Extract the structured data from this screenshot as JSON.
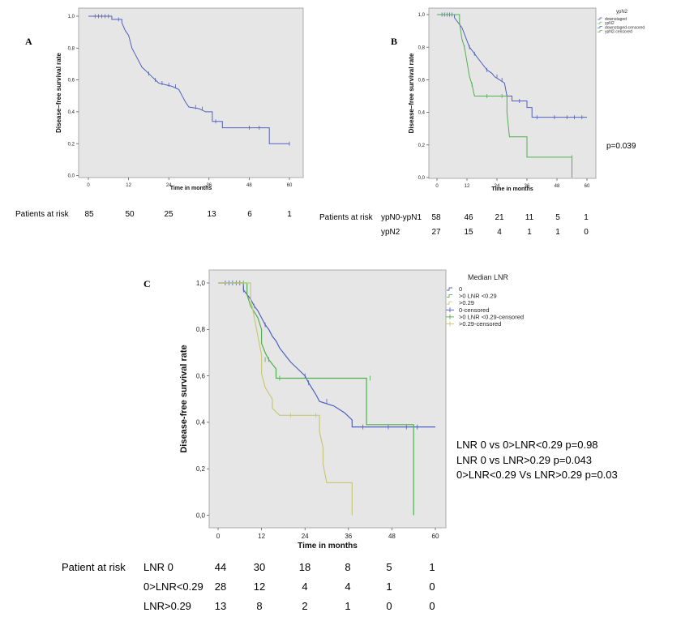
{
  "labels": {
    "a": "A",
    "b": "B",
    "c": "C"
  },
  "chart_data": [
    {
      "id": "A",
      "type": "line",
      "subtype": "kaplan-meier",
      "title": "",
      "xlabel": "Time in months",
      "ylabel": "Disease–free survival rate",
      "xlim": [
        0,
        60
      ],
      "ylim": [
        0,
        1
      ],
      "xticks": [
        "0",
        "12",
        "24",
        "36",
        "48",
        "60"
      ],
      "yticks": [
        "0,0",
        "0,2",
        "0,4",
        "0,6",
        "0,8",
        "1,0"
      ],
      "series": [
        {
          "name": "all patients",
          "color": "#5060c0",
          "steps": [
            [
              0,
              1.0
            ],
            [
              7,
              1.0
            ],
            [
              7,
              0.98
            ],
            [
              10,
              0.98
            ],
            [
              10,
              0.96
            ],
            [
              11,
              0.91
            ],
            [
              12,
              0.88
            ],
            [
              12.5,
              0.84
            ],
            [
              13,
              0.8
            ],
            [
              14,
              0.76
            ],
            [
              15,
              0.72
            ],
            [
              16,
              0.68
            ],
            [
              17,
              0.66
            ],
            [
              18,
              0.64
            ],
            [
              19,
              0.62
            ],
            [
              20,
              0.6
            ],
            [
              21,
              0.58
            ],
            [
              23,
              0.57
            ],
            [
              25,
              0.56
            ],
            [
              27,
              0.54
            ],
            [
              28,
              0.5
            ],
            [
              29,
              0.46
            ],
            [
              30,
              0.43
            ],
            [
              33,
              0.42
            ],
            [
              35,
              0.4
            ],
            [
              37,
              0.4
            ],
            [
              37,
              0.34
            ],
            [
              40,
              0.34
            ],
            [
              40,
              0.3
            ],
            [
              54,
              0.3
            ],
            [
              54,
              0.2
            ],
            [
              60,
              0.2
            ]
          ],
          "censored": [
            [
              2,
              1.0
            ],
            [
              3,
              1.0
            ],
            [
              4,
              1.0
            ],
            [
              5,
              1.0
            ],
            [
              6,
              1.0
            ],
            [
              9,
              0.98
            ],
            [
              18,
              0.64
            ],
            [
              20,
              0.6
            ],
            [
              22,
              0.58
            ],
            [
              24,
              0.57
            ],
            [
              26,
              0.56
            ],
            [
              32,
              0.43
            ],
            [
              34,
              0.42
            ],
            [
              38,
              0.34
            ],
            [
              48,
              0.3
            ],
            [
              51,
              0.3
            ],
            [
              60,
              0.2
            ]
          ]
        }
      ],
      "risk": {
        "label": "Patients at risk",
        "rows": [
          {
            "name": "",
            "values": [
              "85",
              "50",
              "25",
              "13",
              "6",
              "1"
            ]
          }
        ]
      }
    },
    {
      "id": "B",
      "type": "line",
      "subtype": "kaplan-meier",
      "title": "",
      "xlabel": "Time in months",
      "ylabel": "Disease–free survival rate",
      "xlim": [
        0,
        60
      ],
      "ylim": [
        0,
        1
      ],
      "xticks": [
        "0",
        "12",
        "24",
        "36",
        "48",
        "60"
      ],
      "yticks": [
        "0,0",
        "0,2",
        "0,4",
        "0,6",
        "0,8",
        "1,0"
      ],
      "legend": {
        "title": "ypN2",
        "position": "top-right",
        "entries": [
          "downstaged",
          "ypN2",
          "downstaged-censored",
          "ypN2-censored"
        ]
      },
      "annotation": "p=0.039",
      "series": [
        {
          "name": "downstaged",
          "color": "#5060c0",
          "steps": [
            [
              0,
              1.0
            ],
            [
              7,
              1.0
            ],
            [
              7,
              0.98
            ],
            [
              8,
              0.96
            ],
            [
              9,
              0.94
            ],
            [
              10,
              0.92
            ],
            [
              11,
              0.88
            ],
            [
              12,
              0.84
            ],
            [
              13,
              0.8
            ],
            [
              14,
              0.78
            ],
            [
              15,
              0.76
            ],
            [
              16,
              0.74
            ],
            [
              17,
              0.72
            ],
            [
              18,
              0.7
            ],
            [
              19,
              0.68
            ],
            [
              20,
              0.66
            ],
            [
              22,
              0.64
            ],
            [
              23,
              0.62
            ],
            [
              25,
              0.6
            ],
            [
              27,
              0.58
            ],
            [
              28,
              0.5
            ],
            [
              30,
              0.5
            ],
            [
              30,
              0.47
            ],
            [
              36,
              0.47
            ],
            [
              36,
              0.43
            ],
            [
              38,
              0.43
            ],
            [
              38,
              0.37
            ],
            [
              60,
              0.37
            ]
          ],
          "censored": [
            [
              2,
              1.0
            ],
            [
              3,
              1.0
            ],
            [
              4,
              1.0
            ],
            [
              5,
              1.0
            ],
            [
              6,
              1.0
            ],
            [
              13,
              0.8
            ],
            [
              15,
              0.76
            ],
            [
              20,
              0.66
            ],
            [
              24,
              0.62
            ],
            [
              26,
              0.6
            ],
            [
              33,
              0.47
            ],
            [
              40,
              0.37
            ],
            [
              47,
              0.37
            ],
            [
              52,
              0.37
            ],
            [
              55,
              0.37
            ],
            [
              58,
              0.37
            ]
          ]
        },
        {
          "name": "ypN2",
          "color": "#50b050",
          "steps": [
            [
              0,
              1.0
            ],
            [
              9,
              1.0
            ],
            [
              9,
              0.95
            ],
            [
              10,
              0.85
            ],
            [
              11,
              0.8
            ],
            [
              12,
              0.71
            ],
            [
              13,
              0.62
            ],
            [
              14,
              0.57
            ],
            [
              15,
              0.5
            ],
            [
              28,
              0.5
            ],
            [
              28,
              0.4
            ],
            [
              29,
              0.25
            ],
            [
              36,
              0.25
            ],
            [
              36,
              0.125
            ],
            [
              54,
              0.125
            ],
            [
              54,
              0.0
            ]
          ],
          "censored": [
            [
              11,
              0.8
            ],
            [
              14,
              0.57
            ],
            [
              20,
              0.5
            ],
            [
              26,
              0.5
            ],
            [
              54,
              0.125
            ]
          ]
        }
      ],
      "risk": {
        "label": "Patients at risk",
        "rows": [
          {
            "name": "ypN0-ypN1",
            "values": [
              "58",
              "46",
              "21",
              "11",
              "5",
              "1"
            ]
          },
          {
            "name": "ypN2",
            "values": [
              "27",
              "15",
              "4",
              "1",
              "1",
              "0"
            ]
          }
        ]
      }
    },
    {
      "id": "C",
      "type": "line",
      "subtype": "kaplan-meier",
      "title": "",
      "xlabel": "Time in months",
      "ylabel": "Disease-free survival rate",
      "xlim": [
        0,
        60
      ],
      "ylim": [
        0,
        1
      ],
      "xticks": [
        "0",
        "12",
        "24",
        "36",
        "48",
        "60"
      ],
      "yticks": [
        "0,0",
        "0,2",
        "0,4",
        "0,6",
        "0,8",
        "1,0"
      ],
      "legend": {
        "title": "Median LNR",
        "position": "top-right",
        "entries": [
          "0",
          ">0 LNR <0.29",
          ">0.29",
          "0-censored",
          ">0 LNR <0.29-censored",
          ">0.29-censored"
        ]
      },
      "annotations": [
        "LNR 0 vs 0>LNR<0.29 p=0.98",
        "LNR 0 vs LNR>0.29 p=0.043",
        "0>LNR<0.29 Vs LNR>0.29 p=0.03"
      ],
      "series": [
        {
          "name": "0",
          "color": "#5060c0",
          "steps": [
            [
              0,
              1.0
            ],
            [
              7,
              1.0
            ],
            [
              7,
              0.97
            ],
            [
              8,
              0.95
            ],
            [
              9,
              0.93
            ],
            [
              10,
              0.9
            ],
            [
              11,
              0.88
            ],
            [
              12,
              0.85
            ],
            [
              13,
              0.82
            ],
            [
              14,
              0.8
            ],
            [
              15,
              0.77
            ],
            [
              16,
              0.75
            ],
            [
              17,
              0.72
            ],
            [
              18,
              0.7
            ],
            [
              19,
              0.68
            ],
            [
              20,
              0.66
            ],
            [
              22,
              0.63
            ],
            [
              24,
              0.6
            ],
            [
              25,
              0.57
            ],
            [
              27,
              0.52
            ],
            [
              28,
              0.49
            ],
            [
              32,
              0.47
            ],
            [
              35,
              0.44
            ],
            [
              37,
              0.41
            ],
            [
              37,
              0.38
            ],
            [
              60,
              0.38
            ]
          ],
          "censored": [
            [
              2,
              1.0
            ],
            [
              3,
              1.0
            ],
            [
              4,
              1.0
            ],
            [
              5,
              1.0
            ],
            [
              6,
              1.0
            ],
            [
              7,
              0.97
            ],
            [
              13,
              0.82
            ],
            [
              24,
              0.6
            ],
            [
              25,
              0.57
            ],
            [
              30,
              0.49
            ],
            [
              40,
              0.38
            ],
            [
              47,
              0.38
            ],
            [
              52,
              0.38
            ],
            [
              55,
              0.38
            ]
          ]
        },
        {
          "name": ">0 LNR <0.29",
          "color": "#50b050",
          "steps": [
            [
              0,
              1.0
            ],
            [
              8,
              1.0
            ],
            [
              8,
              0.95
            ],
            [
              9,
              0.9
            ],
            [
              11,
              0.85
            ],
            [
              12,
              0.8
            ],
            [
              12,
              0.74
            ],
            [
              13,
              0.7
            ],
            [
              14,
              0.67
            ],
            [
              16,
              0.63
            ],
            [
              16,
              0.59
            ],
            [
              41,
              0.59
            ],
            [
              41,
              0.39
            ],
            [
              54,
              0.39
            ],
            [
              54,
              0.0
            ]
          ],
          "censored": [
            [
              7,
              1.0
            ],
            [
              10,
              0.9
            ],
            [
              13,
              0.67
            ],
            [
              14,
              0.67
            ],
            [
              17,
              0.59
            ],
            [
              42,
              0.59
            ]
          ]
        },
        {
          "name": ">0.29",
          "color": "#c8c878",
          "steps": [
            [
              0,
              1.0
            ],
            [
              9,
              1.0
            ],
            [
              9,
              0.93
            ],
            [
              10,
              0.85
            ],
            [
              11,
              0.77
            ],
            [
              12,
              0.69
            ],
            [
              12,
              0.61
            ],
            [
              13,
              0.55
            ],
            [
              15,
              0.5
            ],
            [
              15,
              0.46
            ],
            [
              17,
              0.43
            ],
            [
              28,
              0.43
            ],
            [
              28,
              0.36
            ],
            [
              29,
              0.29
            ],
            [
              29,
              0.22
            ],
            [
              30,
              0.14
            ],
            [
              37,
              0.14
            ],
            [
              37,
              0.0
            ]
          ],
          "censored": [
            [
              20,
              0.43
            ],
            [
              27,
              0.43
            ]
          ]
        }
      ],
      "risk": {
        "label": "Patient at risk",
        "rows": [
          {
            "name": "LNR 0",
            "values": [
              "44",
              "30",
              "18",
              "8",
              "5",
              "1"
            ]
          },
          {
            "name": "0>LNR<0.29",
            "values": [
              "28",
              "12",
              "4",
              "4",
              "1",
              "0"
            ]
          },
          {
            "name": "LNR>0.29",
            "values": [
              "13",
              "8",
              "2",
              "1",
              "0",
              "0"
            ]
          }
        ]
      }
    }
  ]
}
